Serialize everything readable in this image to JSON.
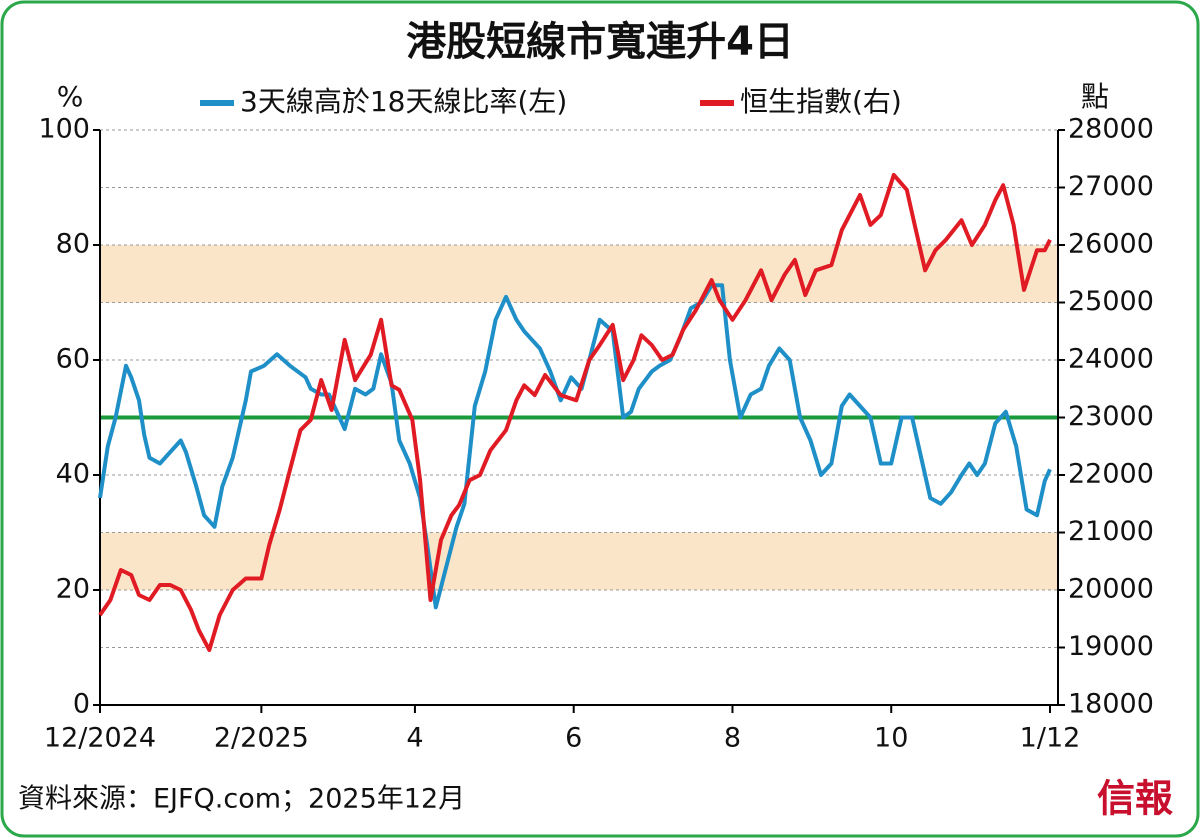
{
  "chart_data": {
    "type": "line",
    "title": "港股短線市寬連升4日",
    "y_label": "%",
    "y2_label": "點",
    "source": "資料來源：EJFQ.com；2025年12月",
    "logo": "信報",
    "xlim": [
      0,
      365
    ],
    "xticks": [
      {
        "value": 0,
        "label": "12/2024"
      },
      {
        "value": 62,
        "label": "2/2025"
      },
      {
        "value": 121,
        "label": "4"
      },
      {
        "value": 182,
        "label": "6"
      },
      {
        "value": 243,
        "label": "8"
      },
      {
        "value": 304,
        "label": "10"
      },
      {
        "value": 365,
        "label": "1/12"
      }
    ],
    "ylim": [
      0,
      100
    ],
    "yticks": [
      0,
      20,
      40,
      60,
      80,
      100
    ],
    "y2lim": [
      18000,
      28000
    ],
    "y2ticks": [
      18000,
      19000,
      20000,
      21000,
      22000,
      23000,
      24000,
      25000,
      26000,
      27000,
      28000
    ],
    "grid": true,
    "bands": [
      [
        20,
        30
      ],
      [
        70,
        80
      ]
    ],
    "band_color": "#fbe5c8",
    "hline": 50,
    "hline_color": "#1a9a3a",
    "series": [
      {
        "name": "3天線高於18天線比率(左)",
        "color": "#1f8fc8",
        "x": [
          0,
          3,
          6,
          10,
          12,
          15,
          17,
          19,
          23,
          27,
          31,
          33,
          37,
          40,
          44,
          47,
          51,
          56,
          58,
          63,
          68,
          73,
          79,
          81,
          85,
          88,
          94,
          98,
          102,
          105,
          108,
          112,
          115,
          119,
          123,
          126,
          129,
          133,
          137,
          140,
          144,
          148,
          152,
          156,
          160,
          163,
          169,
          173,
          177,
          181,
          185,
          188,
          192,
          197,
          201,
          204,
          207,
          212,
          215,
          219,
          223,
          227,
          231,
          235,
          239,
          242,
          246,
          250,
          254,
          257,
          261,
          265,
          269,
          273,
          277,
          281,
          285,
          288,
          292,
          296,
          300,
          304,
          308,
          312,
          315,
          319,
          323,
          327,
          331,
          334,
          337,
          340,
          344,
          348,
          352,
          356,
          360,
          363,
          365
        ],
        "values": [
          36,
          45,
          50,
          59,
          57,
          53,
          47,
          43,
          42,
          44,
          46,
          44,
          38,
          33,
          31,
          38,
          43,
          53,
          58,
          59,
          61,
          59,
          57,
          55,
          54,
          54,
          48,
          55,
          54,
          55,
          61,
          56,
          46,
          42,
          36,
          27,
          17,
          24,
          31,
          35,
          52,
          58,
          67,
          71,
          67,
          65,
          62,
          58,
          53,
          57,
          55,
          60,
          67,
          65,
          50,
          51,
          55,
          58,
          59,
          60,
          64,
          69,
          70,
          73,
          73,
          60,
          50,
          54,
          55,
          59,
          62,
          60,
          50,
          46,
          40,
          42,
          52,
          54,
          52,
          50,
          42,
          42,
          50,
          50,
          44,
          36,
          35,
          37,
          40,
          42,
          40,
          42,
          49,
          51,
          45,
          34,
          33,
          39,
          41
        ]
      },
      {
        "name": "恒生指數(右)",
        "color": "#e01b24",
        "axis": "y2",
        "x": [
          0,
          4,
          8,
          12,
          15,
          19,
          23,
          27,
          31,
          35,
          38,
          42,
          46,
          51,
          56,
          62,
          65,
          69,
          73,
          77,
          81,
          85,
          89,
          94,
          98,
          104,
          108,
          112,
          115,
          120,
          123,
          127,
          131,
          135,
          138,
          142,
          146,
          150,
          156,
          160,
          163,
          167,
          171,
          177,
          183,
          188,
          192,
          197,
          201,
          205,
          208,
          212,
          216,
          220,
          224,
          229,
          235,
          238,
          243,
          248,
          254,
          258,
          263,
          267,
          271,
          275,
          281,
          285,
          288,
          292,
          296,
          300,
          305,
          310,
          313,
          317,
          321,
          325,
          331,
          335,
          340,
          344,
          347,
          351,
          355,
          360,
          363,
          365
        ],
        "values": [
          19565,
          19826,
          20348,
          20260,
          19913,
          19826,
          20087,
          20087,
          20000,
          19650,
          19300,
          18957,
          19565,
          20000,
          20200,
          20200,
          20780,
          21390,
          22090,
          22780,
          22960,
          23650,
          23130,
          24350,
          23650,
          24090,
          24700,
          23560,
          23480,
          22960,
          21910,
          19826,
          20870,
          21300,
          21480,
          21910,
          22000,
          22430,
          22780,
          23300,
          23560,
          23390,
          23740,
          23390,
          23300,
          24000,
          24260,
          24610,
          23650,
          24000,
          24430,
          24260,
          24000,
          24090,
          24520,
          24870,
          25390,
          25040,
          24700,
          25040,
          25560,
          25040,
          25480,
          25740,
          25130,
          25560,
          25650,
          26260,
          26520,
          26870,
          26350,
          26520,
          27220,
          26960,
          26350,
          25560,
          25910,
          26090,
          26430,
          26000,
          26350,
          26780,
          27040,
          26350,
          25220,
          25910,
          25910,
          26090
        ]
      }
    ]
  }
}
